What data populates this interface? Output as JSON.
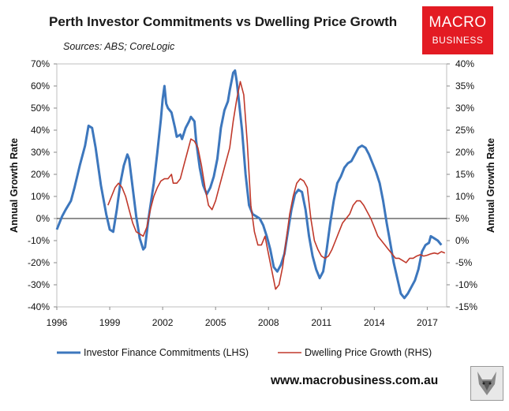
{
  "brand": {
    "logo_line1": "MACRO",
    "logo_line2": "BUSINESS",
    "logo_color": "#e31b23",
    "website": "www.macrobusiness.com.au"
  },
  "chart_data": {
    "type": "line",
    "title": "Perth Investor Commitments vs Dwelling Price Growth",
    "subtitle": "Sources: ABS; CoreLogic",
    "ylabel_left": "Annual Growth Rate",
    "ylabel_right": "Annual Growth Rate",
    "xlim": [
      1996,
      2018.1
    ],
    "ylim_left": [
      -40,
      70
    ],
    "ylim_right": [
      -15,
      40
    ],
    "x_ticks": [
      "1996",
      "1999",
      "2002",
      "2005",
      "2008",
      "2011",
      "2014",
      "2017"
    ],
    "y_ticks_left": [
      "70%",
      "60%",
      "50%",
      "40%",
      "30%",
      "20%",
      "10%",
      "0%",
      "-10%",
      "-20%",
      "-30%",
      "-40%"
    ],
    "y_ticks_right": [
      "40%",
      "35%",
      "30%",
      "25%",
      "20%",
      "15%",
      "10%",
      "5%",
      "0%",
      "-5%",
      "-10%",
      "-15%"
    ],
    "legend": "bottom",
    "series": [
      {
        "name": "Investor Finance Commitments (LHS)",
        "axis": "left",
        "color": "#3d77bd",
        "points": [
          [
            1996.0,
            -5
          ],
          [
            1996.3,
            1
          ],
          [
            1996.5,
            4
          ],
          [
            1996.8,
            8
          ],
          [
            1997.0,
            14
          ],
          [
            1997.3,
            24
          ],
          [
            1997.6,
            33
          ],
          [
            1997.8,
            42
          ],
          [
            1998.0,
            41
          ],
          [
            1998.2,
            32
          ],
          [
            1998.5,
            15
          ],
          [
            1998.8,
            2
          ],
          [
            1999.0,
            -5
          ],
          [
            1999.2,
            -6
          ],
          [
            1999.4,
            4
          ],
          [
            1999.6,
            16
          ],
          [
            1999.8,
            24
          ],
          [
            2000.0,
            29
          ],
          [
            2000.1,
            27
          ],
          [
            2000.3,
            14
          ],
          [
            2000.5,
            1
          ],
          [
            2000.7,
            -9
          ],
          [
            2000.9,
            -14
          ],
          [
            2001.0,
            -13
          ],
          [
            2001.2,
            0
          ],
          [
            2001.5,
            16
          ],
          [
            2001.7,
            30
          ],
          [
            2001.9,
            45
          ],
          [
            2002.0,
            54
          ],
          [
            2002.1,
            60
          ],
          [
            2002.2,
            52
          ],
          [
            2002.3,
            50
          ],
          [
            2002.5,
            48
          ],
          [
            2002.7,
            41
          ],
          [
            2002.8,
            37
          ],
          [
            2003.0,
            38
          ],
          [
            2003.1,
            36
          ],
          [
            2003.3,
            41
          ],
          [
            2003.5,
            44
          ],
          [
            2003.6,
            46
          ],
          [
            2003.8,
            44
          ],
          [
            2003.9,
            35
          ],
          [
            2004.1,
            23
          ],
          [
            2004.3,
            15
          ],
          [
            2004.5,
            11
          ],
          [
            2004.7,
            14
          ],
          [
            2004.9,
            19
          ],
          [
            2005.1,
            27
          ],
          [
            2005.3,
            41
          ],
          [
            2005.5,
            49
          ],
          [
            2005.7,
            53
          ],
          [
            2005.8,
            58
          ],
          [
            2005.9,
            62
          ],
          [
            2006.0,
            66
          ],
          [
            2006.1,
            67
          ],
          [
            2006.2,
            62
          ],
          [
            2006.3,
            55
          ],
          [
            2006.5,
            40
          ],
          [
            2006.7,
            20
          ],
          [
            2006.9,
            6
          ],
          [
            2007.1,
            2
          ],
          [
            2007.3,
            1
          ],
          [
            2007.5,
            0
          ],
          [
            2007.7,
            -3
          ],
          [
            2007.9,
            -8
          ],
          [
            2008.1,
            -14
          ],
          [
            2008.3,
            -22
          ],
          [
            2008.5,
            -24
          ],
          [
            2008.7,
            -21
          ],
          [
            2008.9,
            -16
          ],
          [
            2009.1,
            -6
          ],
          [
            2009.3,
            4
          ],
          [
            2009.5,
            11
          ],
          [
            2009.7,
            13
          ],
          [
            2009.9,
            12
          ],
          [
            2010.1,
            4
          ],
          [
            2010.3,
            -8
          ],
          [
            2010.5,
            -17
          ],
          [
            2010.7,
            -23
          ],
          [
            2010.9,
            -27
          ],
          [
            2011.1,
            -24
          ],
          [
            2011.3,
            -14
          ],
          [
            2011.5,
            -2
          ],
          [
            2011.7,
            8
          ],
          [
            2011.9,
            16
          ],
          [
            2012.1,
            19
          ],
          [
            2012.3,
            23
          ],
          [
            2012.5,
            25
          ],
          [
            2012.7,
            26
          ],
          [
            2012.9,
            29
          ],
          [
            2013.1,
            32
          ],
          [
            2013.3,
            33
          ],
          [
            2013.5,
            32
          ],
          [
            2013.7,
            29
          ],
          [
            2013.9,
            25
          ],
          [
            2014.1,
            21
          ],
          [
            2014.3,
            16
          ],
          [
            2014.5,
            8
          ],
          [
            2014.7,
            -2
          ],
          [
            2014.9,
            -11
          ],
          [
            2015.1,
            -20
          ],
          [
            2015.3,
            -27
          ],
          [
            2015.5,
            -34
          ],
          [
            2015.7,
            -36
          ],
          [
            2015.9,
            -34
          ],
          [
            2016.1,
            -31
          ],
          [
            2016.3,
            -28
          ],
          [
            2016.5,
            -23
          ],
          [
            2016.7,
            -15
          ],
          [
            2016.9,
            -12
          ],
          [
            2017.1,
            -11
          ],
          [
            2017.2,
            -8
          ],
          [
            2017.4,
            -9
          ],
          [
            2017.6,
            -10
          ],
          [
            2017.8,
            -12
          ]
        ]
      },
      {
        "name": "Dwelling Price Growth (RHS)",
        "axis": "right",
        "color": "#c0392b",
        "points": [
          [
            1998.9,
            8
          ],
          [
            1999.1,
            10
          ],
          [
            1999.3,
            12
          ],
          [
            1999.5,
            13
          ],
          [
            1999.7,
            12
          ],
          [
            1999.9,
            10
          ],
          [
            2000.1,
            7
          ],
          [
            2000.3,
            4
          ],
          [
            2000.5,
            2
          ],
          [
            2000.7,
            1.5
          ],
          [
            2000.9,
            1
          ],
          [
            2001.1,
            3
          ],
          [
            2001.3,
            7
          ],
          [
            2001.5,
            10
          ],
          [
            2001.7,
            12
          ],
          [
            2001.9,
            13.5
          ],
          [
            2002.1,
            14
          ],
          [
            2002.3,
            14
          ],
          [
            2002.5,
            15
          ],
          [
            2002.6,
            13
          ],
          [
            2002.8,
            13
          ],
          [
            2003.0,
            14
          ],
          [
            2003.2,
            17
          ],
          [
            2003.4,
            20
          ],
          [
            2003.6,
            23
          ],
          [
            2003.8,
            22.5
          ],
          [
            2004.0,
            21
          ],
          [
            2004.2,
            17
          ],
          [
            2004.4,
            12
          ],
          [
            2004.6,
            8
          ],
          [
            2004.8,
            7
          ],
          [
            2005.0,
            9
          ],
          [
            2005.2,
            12
          ],
          [
            2005.4,
            15
          ],
          [
            2005.6,
            18
          ],
          [
            2005.8,
            21
          ],
          [
            2006.0,
            27
          ],
          [
            2006.2,
            32
          ],
          [
            2006.4,
            36
          ],
          [
            2006.6,
            33
          ],
          [
            2006.8,
            22
          ],
          [
            2007.0,
            8
          ],
          [
            2007.2,
            2
          ],
          [
            2007.4,
            -1
          ],
          [
            2007.6,
            -1
          ],
          [
            2007.8,
            1
          ],
          [
            2008.0,
            -3
          ],
          [
            2008.2,
            -7
          ],
          [
            2008.4,
            -11
          ],
          [
            2008.6,
            -10
          ],
          [
            2008.8,
            -6
          ],
          [
            2009.0,
            0
          ],
          [
            2009.2,
            6
          ],
          [
            2009.4,
            10
          ],
          [
            2009.6,
            13
          ],
          [
            2009.8,
            14
          ],
          [
            2010.0,
            13.5
          ],
          [
            2010.2,
            12
          ],
          [
            2010.4,
            5
          ],
          [
            2010.6,
            0
          ],
          [
            2010.8,
            -2
          ],
          [
            2011.0,
            -3.5
          ],
          [
            2011.2,
            -4
          ],
          [
            2011.4,
            -3.5
          ],
          [
            2011.6,
            -2
          ],
          [
            2011.8,
            0
          ],
          [
            2012.0,
            2
          ],
          [
            2012.2,
            4
          ],
          [
            2012.4,
            5
          ],
          [
            2012.6,
            6
          ],
          [
            2012.8,
            8
          ],
          [
            2013.0,
            9
          ],
          [
            2013.2,
            9
          ],
          [
            2013.4,
            8
          ],
          [
            2013.6,
            6.5
          ],
          [
            2013.8,
            5
          ],
          [
            2014.0,
            3
          ],
          [
            2014.2,
            1
          ],
          [
            2014.4,
            0
          ],
          [
            2014.6,
            -1
          ],
          [
            2014.8,
            -2
          ],
          [
            2015.0,
            -3
          ],
          [
            2015.2,
            -4
          ],
          [
            2015.4,
            -4
          ],
          [
            2015.6,
            -4.5
          ],
          [
            2015.8,
            -5
          ],
          [
            2016.0,
            -4
          ],
          [
            2016.2,
            -4
          ],
          [
            2016.4,
            -3.5
          ],
          [
            2016.6,
            -3.2
          ],
          [
            2016.8,
            -3.5
          ],
          [
            2017.0,
            -3.3
          ],
          [
            2017.2,
            -3
          ],
          [
            2017.4,
            -2.8
          ],
          [
            2017.6,
            -3
          ],
          [
            2017.8,
            -2.5
          ],
          [
            2018.0,
            -2.8
          ]
        ]
      }
    ]
  }
}
